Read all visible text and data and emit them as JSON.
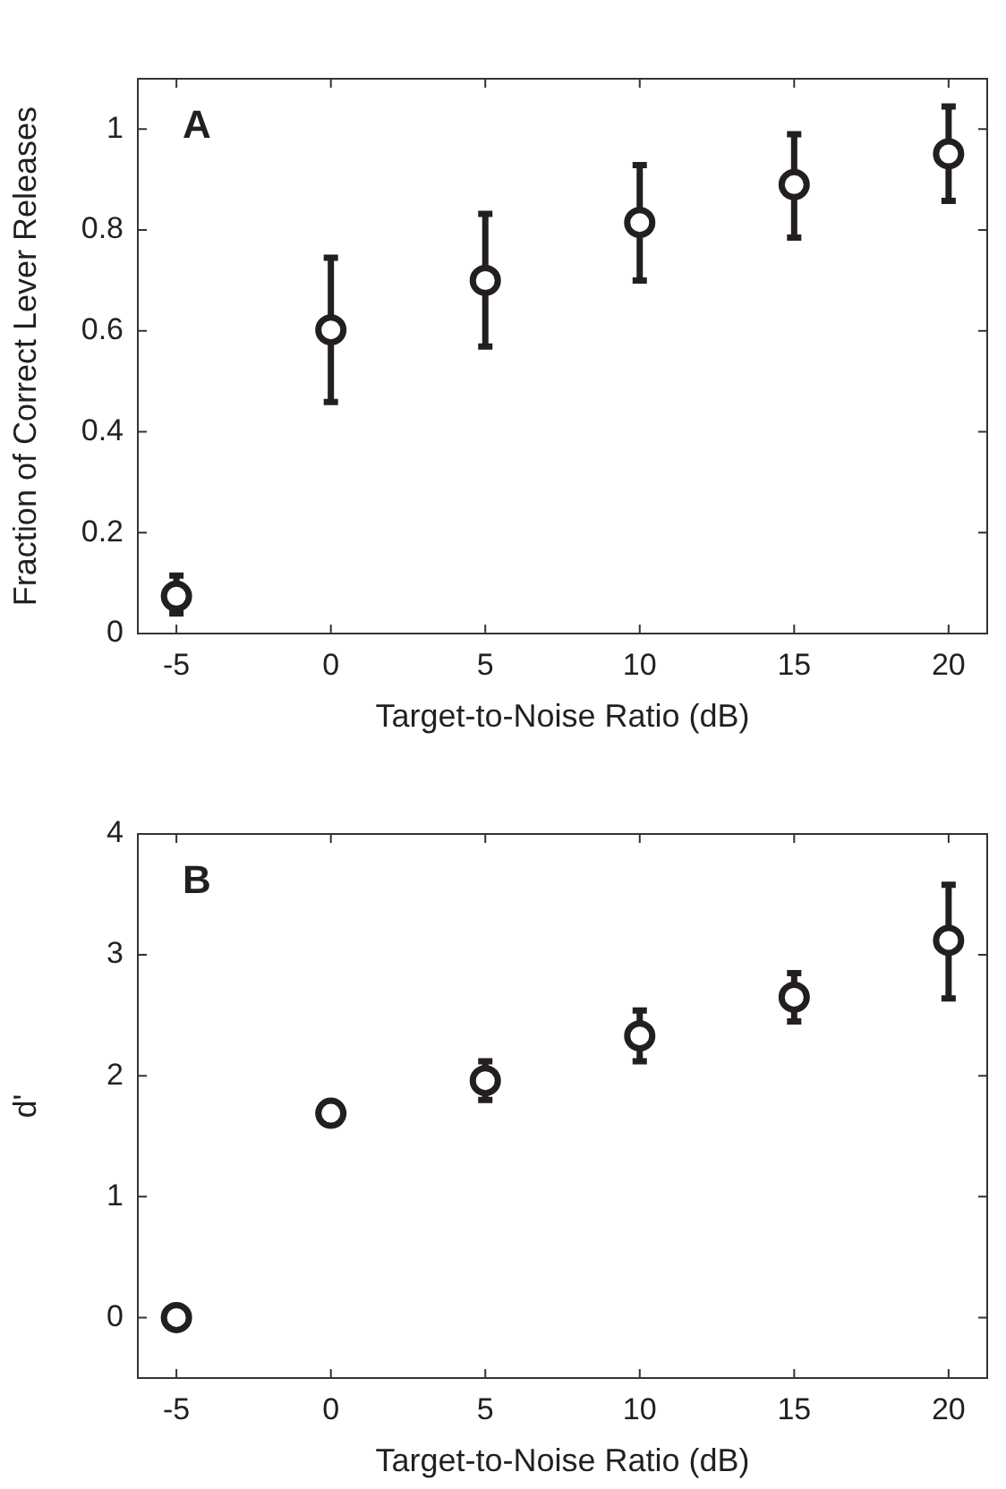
{
  "chart_data": [
    {
      "type": "scatter",
      "ylabel": "Fraction of Correct Lever Releases",
      "xlabel": "Target-to-Noise Ratio (dB)",
      "annotations": [
        "A"
      ],
      "x": [
        -5,
        0,
        5,
        10,
        15,
        20
      ],
      "series": [
        {
          "color": "#231f20",
          "values": [
            0.074,
            0.602,
            0.7,
            0.815,
            0.89,
            0.951
          ],
          "errors": [
            [
              0.04,
              0.115
            ],
            [
              0.459,
              0.745
            ],
            [
              0.569,
              0.832
            ],
            [
              0.7,
              0.929
            ],
            [
              0.785,
              0.99
            ],
            [
              0.858,
              1.045
            ]
          ]
        }
      ],
      "xlim": [
        -6.25,
        21.25
      ],
      "xticks": [
        -5,
        0,
        5,
        10,
        15,
        20
      ],
      "ylim": [
        0,
        1.1
      ],
      "yticks": [
        0,
        0.2,
        0.4,
        0.6,
        0.8,
        1
      ],
      "marker": "circle",
      "grid": false,
      "legend": false
    },
    {
      "type": "scatter",
      "ylabel": "d'",
      "xlabel": "Target-to-Noise Ratio (dB)",
      "annotations": [
        "B"
      ],
      "x": [
        -5,
        0,
        5,
        10,
        15,
        20
      ],
      "series": [
        {
          "color": "#231f20",
          "values": [
            0,
            1.69,
            1.96,
            2.33,
            2.65,
            3.12
          ],
          "errors": [
            null,
            null,
            [
              1.8,
              2.12
            ],
            [
              2.12,
              2.54
            ],
            [
              2.45,
              2.85
            ],
            [
              2.64,
              3.58
            ]
          ]
        }
      ],
      "xlim": [
        -6.25,
        21.25
      ],
      "xticks": [
        -5,
        0,
        5,
        10,
        15,
        20
      ],
      "ylim": [
        -0.5,
        4
      ],
      "yticks": [
        0,
        1,
        2,
        3,
        4
      ],
      "marker": "circle",
      "grid": false,
      "legend": false
    }
  ]
}
